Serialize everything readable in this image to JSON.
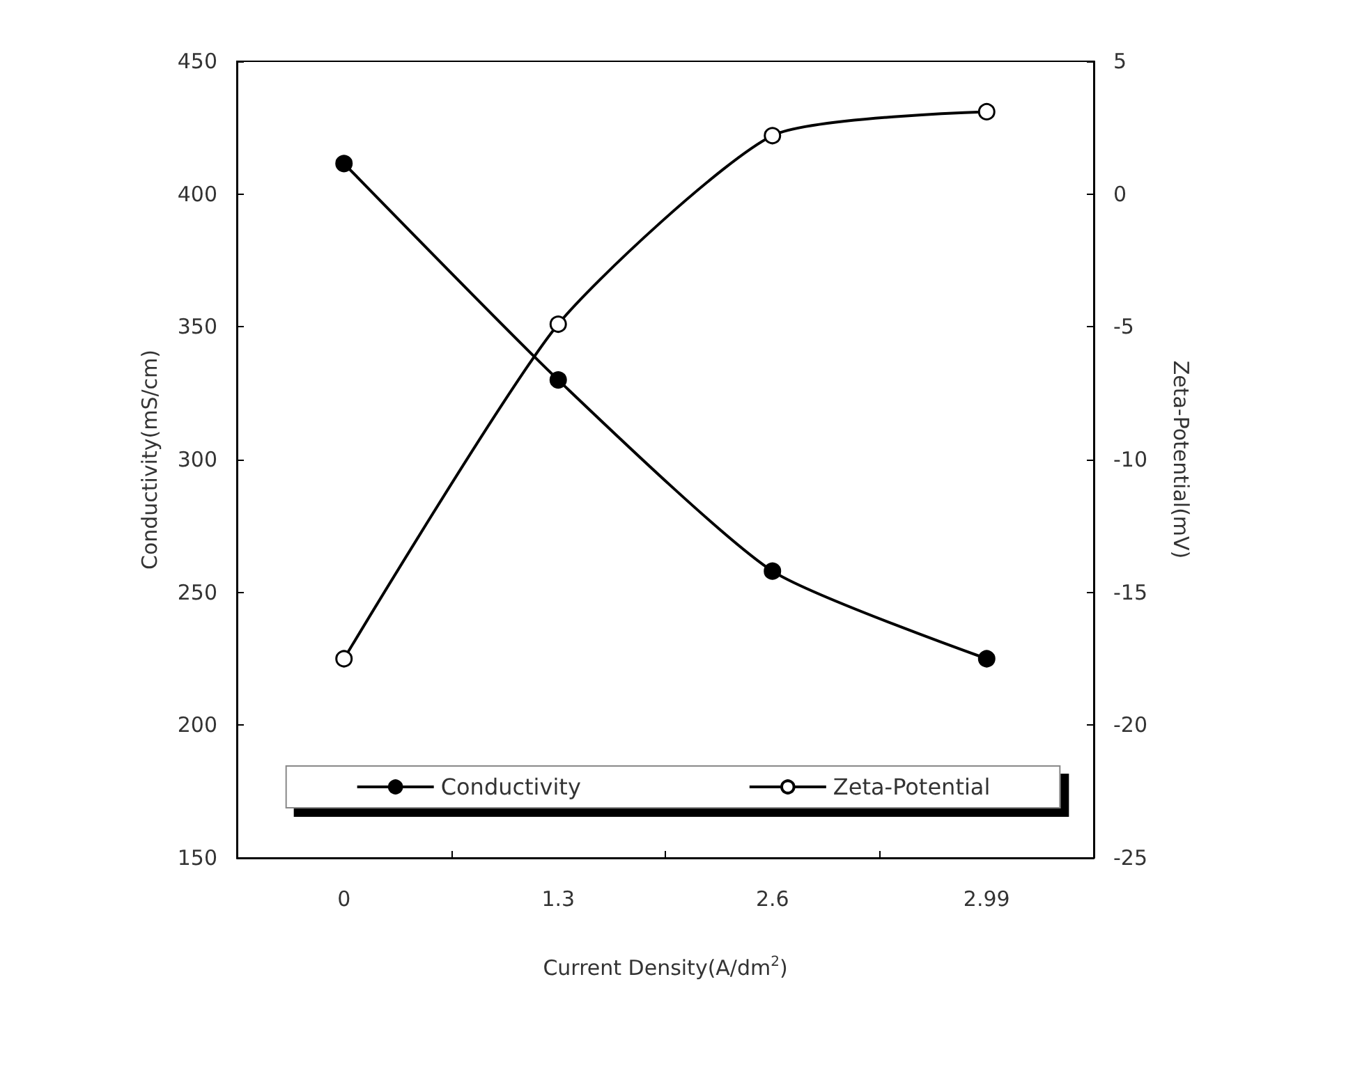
{
  "chart_data": {
    "type": "line",
    "xlabel": "Current Density(A/dm$^{2}$)",
    "ylabel": "Conductivity(mS/cm)",
    "y2label": "Zeta-Potential(mV)",
    "categories": [
      "0",
      "1.3",
      "2.6",
      "2.99"
    ],
    "series": [
      {
        "name": "Conductivity",
        "color": "#000000",
        "values": [
          411.5,
          330,
          258,
          225
        ]
      },
      {
        "name": "Zeta-Potential",
        "color": "#000000",
        "axis": "y2",
        "values": [
          -17.5,
          -4.9,
          2.2,
          3.1
        ]
      }
    ],
    "ylim": [
      150,
      450
    ],
    "yticks": [
      150,
      200,
      250,
      300,
      350,
      400,
      450
    ],
    "y2lim": [
      -25,
      5
    ],
    "y2ticks": [
      -25,
      -20,
      -15,
      -10,
      -5,
      0,
      5
    ],
    "legend": "bottom",
    "grid": false,
    "marker": "circle",
    "line_style": "solid"
  }
}
